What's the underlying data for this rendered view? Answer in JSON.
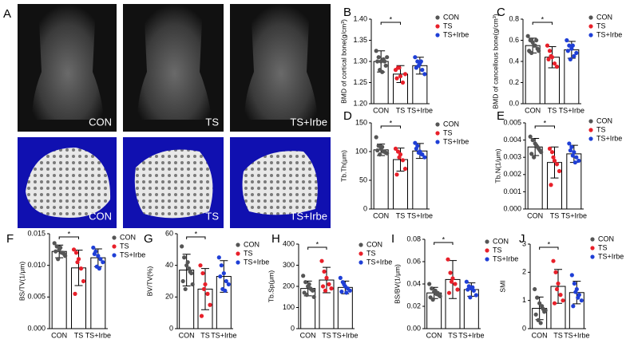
{
  "panel_a": {
    "letter": "A",
    "labels": [
      "CON",
      "TS",
      "TS+Irbe"
    ]
  },
  "chart_data": [
    {
      "type": "bar",
      "panel": "B",
      "ylabel": "BMD of cortical bone(g/cm³)",
      "categories": [
        "CON",
        "TS",
        "TS+Irbe"
      ],
      "colors": [
        "#555555",
        "#e8202a",
        "#1f3fd6"
      ],
      "values": [
        1.3,
        1.27,
        1.29
      ],
      "errors": [
        0.025,
        0.02,
        0.02
      ],
      "points": [
        [
          1.325,
          1.31,
          1.3,
          1.305,
          1.29,
          1.3,
          1.28,
          1.275,
          1.3,
          1.31
        ],
        [
          1.28,
          1.285,
          1.265,
          1.25,
          1.27,
          1.26,
          1.285
        ],
        [
          1.31,
          1.3,
          1.295,
          1.28,
          1.27,
          1.285,
          1.29,
          1.3
        ]
      ],
      "ylim": [
        1.2,
        1.4
      ],
      "yticks": [
        {
          "value": 1.2,
          "label": "1.20"
        },
        {
          "value": 1.25,
          "label": "1.25"
        },
        {
          "value": 1.3,
          "label": "1.30"
        },
        {
          "value": 1.35,
          "label": "1.35"
        },
        {
          "value": 1.4,
          "label": "1.40"
        }
      ],
      "annotation": "*"
    },
    {
      "type": "bar",
      "panel": "C",
      "ylabel": "BMD of cancellous bone(g/cm³)",
      "categories": [
        "CON",
        "TS",
        "TS+Irbe"
      ],
      "colors": [
        "#555555",
        "#e8202a",
        "#1f3fd6"
      ],
      "values": [
        0.55,
        0.44,
        0.51
      ],
      "errors": [
        0.07,
        0.1,
        0.08
      ],
      "points": [
        [
          0.64,
          0.6,
          0.58,
          0.55,
          0.52,
          0.5,
          0.48,
          0.55,
          0.6,
          0.5
        ],
        [
          0.55,
          0.5,
          0.44,
          0.38,
          0.35,
          0.42,
          0.45
        ],
        [
          0.6,
          0.55,
          0.52,
          0.45,
          0.48,
          0.5,
          0.42,
          0.55
        ]
      ],
      "ylim": [
        0,
        0.8
      ],
      "yticks": [
        {
          "value": 0,
          "label": "0.0"
        },
        0.2,
        0.4,
        0.6,
        0.8
      ],
      "annotation": "*"
    },
    {
      "type": "bar",
      "panel": "D",
      "ylabel": "Tb.Th(μm)",
      "categories": [
        "CON",
        "TS",
        "TS+Irbe"
      ],
      "colors": [
        "#555555",
        "#e8202a",
        "#1f3fd6"
      ],
      "values": [
        103,
        86,
        101
      ],
      "errors": [
        10,
        20,
        13
      ],
      "points": [
        [
          125,
          110,
          105,
          100,
          98,
          102,
          95,
          108,
          100,
          97
        ],
        [
          105,
          100,
          95,
          85,
          70,
          60,
          90
        ],
        [
          115,
          110,
          100,
          95,
          90,
          105,
          98,
          96
        ]
      ],
      "ylim": [
        0,
        150
      ],
      "yticks": [
        0,
        50,
        100,
        150
      ],
      "annotation": "*"
    },
    {
      "type": "bar",
      "panel": "E",
      "ylabel": "Tb.N(1/μm)",
      "categories": [
        "CON",
        "TS",
        "TS+Irbe"
      ],
      "colors": [
        "#555555",
        "#e8202a",
        "#1f3fd6"
      ],
      "values": [
        0.0036,
        0.0027,
        0.0032
      ],
      "errors": [
        0.0005,
        0.0009,
        0.0005
      ],
      "points": [
        [
          0.0042,
          0.004,
          0.0038,
          0.0036,
          0.0034,
          0.0032,
          0.003,
          0.0037,
          0.0035,
          0.0033
        ],
        [
          0.0035,
          0.0033,
          0.0028,
          0.0026,
          0.0022,
          0.0014,
          0.003
        ],
        [
          0.0038,
          0.0036,
          0.0033,
          0.003,
          0.0028,
          0.0034,
          0.0031,
          0.0027
        ]
      ],
      "ylim": [
        0,
        0.005
      ],
      "yticks": [
        {
          "value": 0,
          "label": "0.000"
        },
        {
          "value": 0.001,
          "label": "0.001"
        },
        {
          "value": 0.002,
          "label": "0.002"
        },
        {
          "value": 0.003,
          "label": "0.003"
        },
        {
          "value": 0.004,
          "label": "0.004"
        },
        {
          "value": 0.005,
          "label": "0.005"
        }
      ],
      "annotation": "*"
    },
    {
      "type": "bar",
      "panel": "F",
      "ylabel": "BS/TV(1/μm)",
      "categories": [
        "CON",
        "TS",
        "TS+Irbe"
      ],
      "colors": [
        "#555555",
        "#e8202a",
        "#1f3fd6"
      ],
      "values": [
        0.0122,
        0.0096,
        0.0112
      ],
      "errors": [
        0.001,
        0.0028,
        0.0014
      ],
      "points": [
        [
          0.0135,
          0.013,
          0.0125,
          0.012,
          0.0118,
          0.0122,
          0.011,
          0.0128,
          0.012,
          0.0115
        ],
        [
          0.0125,
          0.012,
          0.011,
          0.0095,
          0.0075,
          0.0055,
          0.0105
        ],
        [
          0.0128,
          0.0122,
          0.0115,
          0.011,
          0.0105,
          0.0118,
          0.0098,
          0.0095
        ]
      ],
      "ylim": [
        0,
        0.015
      ],
      "yticks": [
        {
          "value": 0,
          "label": "0.000"
        },
        {
          "value": 0.005,
          "label": "0.005"
        },
        {
          "value": 0.01,
          "label": "0.010"
        },
        {
          "value": 0.015,
          "label": "0.015"
        }
      ],
      "annotation": "*"
    },
    {
      "type": "bar",
      "panel": "G",
      "ylabel": "BV/TV(%)",
      "categories": [
        "CON",
        "TS",
        "TS+Irbe"
      ],
      "colors": [
        "#555555",
        "#e8202a",
        "#1f3fd6"
      ],
      "values": [
        37,
        25,
        33
      ],
      "errors": [
        10,
        13,
        10
      ],
      "points": [
        [
          52,
          45,
          40,
          38,
          35,
          30,
          25,
          42,
          36,
          28
        ],
        [
          40,
          35,
          28,
          22,
          15,
          8,
          25
        ],
        [
          45,
          40,
          35,
          30,
          28,
          33,
          25,
          24
        ]
      ],
      "ylim": [
        0,
        60
      ],
      "yticks": [
        0,
        20,
        40,
        60
      ],
      "annotation": "*"
    },
    {
      "type": "bar",
      "panel": "H",
      "ylabel": "Tb.Sp(μm)",
      "categories": [
        "CON",
        "TS",
        "TS+Irbe"
      ],
      "colors": [
        "#555555",
        "#e8202a",
        "#1f3fd6"
      ],
      "values": [
        190,
        230,
        195
      ],
      "errors": [
        35,
        60,
        30
      ],
      "points": [
        [
          250,
          220,
          200,
          190,
          180,
          170,
          160,
          210,
          185,
          150
        ],
        [
          320,
          270,
          240,
          210,
          190,
          200,
          180
        ],
        [
          240,
          220,
          200,
          190,
          180,
          175,
          210,
          170
        ]
      ],
      "ylim": [
        0,
        400
      ],
      "yticks": [
        0,
        100,
        200,
        300,
        400
      ],
      "annotation": "*"
    },
    {
      "type": "bar",
      "panel": "I",
      "ylabel": "BS/BV(1/μm)",
      "categories": [
        "CON",
        "TS",
        "TS+Irbe"
      ],
      "colors": [
        "#555555",
        "#e8202a",
        "#1f3fd6"
      ],
      "values": [
        0.032,
        0.044,
        0.035
      ],
      "errors": [
        0.005,
        0.017,
        0.006
      ],
      "points": [
        [
          0.04,
          0.036,
          0.033,
          0.031,
          0.03,
          0.028,
          0.026,
          0.034,
          0.032,
          0.029
        ],
        [
          0.062,
          0.05,
          0.045,
          0.04,
          0.035,
          0.032,
          0.042
        ],
        [
          0.042,
          0.038,
          0.036,
          0.034,
          0.03,
          0.035,
          0.028,
          0.037
        ]
      ],
      "ylim": [
        0,
        0.08
      ],
      "yticks": [
        {
          "value": 0,
          "label": "0.00"
        },
        {
          "value": 0.02,
          "label": "0.02"
        },
        {
          "value": 0.04,
          "label": "0.04"
        },
        {
          "value": 0.06,
          "label": "0.06"
        },
        {
          "value": 0.08,
          "label": "0.08"
        }
      ],
      "annotation": "*"
    },
    {
      "type": "bar",
      "panel": "J",
      "ylabel": "SMI",
      "categories": [
        "CON",
        "TS",
        "TS+Irbe"
      ],
      "colors": [
        "#555555",
        "#e8202a",
        "#1f3fd6"
      ],
      "values": [
        0.72,
        1.5,
        1.28
      ],
      "errors": [
        0.4,
        0.6,
        0.4
      ],
      "points": [
        [
          1.4,
          1.1,
          0.9,
          0.8,
          0.6,
          0.5,
          0.3,
          0.2,
          0.7,
          0.65
        ],
        [
          2.4,
          2.0,
          1.6,
          1.2,
          1.0,
          0.9,
          1.4
        ],
        [
          1.9,
          1.6,
          1.4,
          1.2,
          1.0,
          0.8,
          1.3,
          1.1
        ]
      ],
      "ylim": [
        0,
        3
      ],
      "yticks": [
        0,
        1,
        2,
        3
      ],
      "annotation": "*"
    }
  ]
}
